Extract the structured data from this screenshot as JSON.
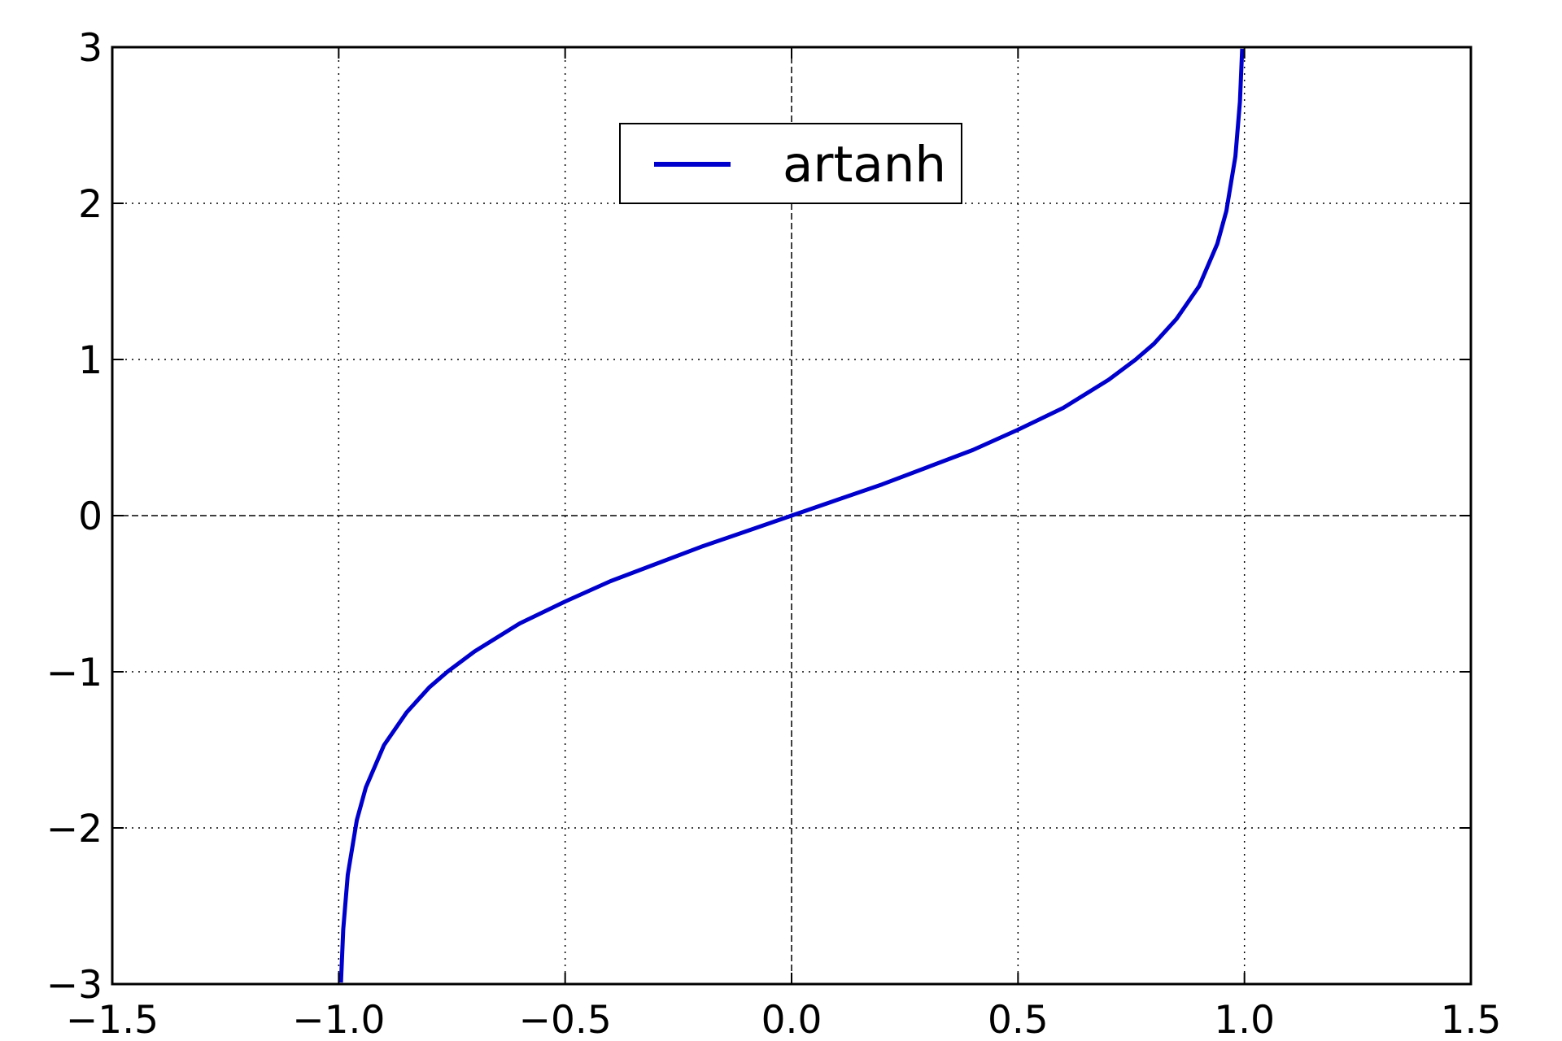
{
  "chart_data": {
    "type": "line",
    "title": "",
    "xlabel": "",
    "ylabel": "",
    "xlim": [
      -1.5,
      1.5
    ],
    "ylim": [
      -3,
      3
    ],
    "xticks": [
      -1.5,
      -1.0,
      -0.5,
      0.0,
      0.5,
      1.0,
      1.5
    ],
    "yticks": [
      -3,
      -2,
      -1,
      0,
      1,
      2,
      3
    ],
    "xtick_labels": [
      "−1.5",
      "−1.0",
      "−0.5",
      "0.0",
      "0.5",
      "1.0",
      "1.5"
    ],
    "ytick_labels": [
      "−3",
      "−2",
      "−1",
      "0",
      "1",
      "2",
      "3"
    ],
    "grid": true,
    "grid_style": "dotted",
    "zero_lines": "dashed",
    "legend": {
      "position": "upper-center",
      "entries": [
        "artanh"
      ]
    },
    "series": [
      {
        "name": "artanh",
        "color": "#0000cc",
        "x": [
          -0.995,
          -0.99,
          -0.98,
          -0.96,
          -0.94,
          -0.9,
          -0.85,
          -0.8,
          -0.76,
          -0.7,
          -0.6,
          -0.5,
          -0.4,
          -0.3,
          -0.2,
          -0.1,
          0.0,
          0.1,
          0.2,
          0.3,
          0.4,
          0.5,
          0.6,
          0.7,
          0.76,
          0.8,
          0.85,
          0.9,
          0.94,
          0.96,
          0.98,
          0.99,
          0.995
        ],
        "y": [
          -2.99,
          -2.65,
          -2.3,
          -1.95,
          -1.74,
          -1.47,
          -1.26,
          -1.1,
          -1.0,
          -0.87,
          -0.69,
          -0.55,
          -0.42,
          -0.31,
          -0.2,
          -0.1,
          0.0,
          0.1,
          0.2,
          0.31,
          0.42,
          0.55,
          0.69,
          0.87,
          1.0,
          1.1,
          1.26,
          1.47,
          1.74,
          1.95,
          2.3,
          2.65,
          2.99
        ]
      }
    ]
  }
}
